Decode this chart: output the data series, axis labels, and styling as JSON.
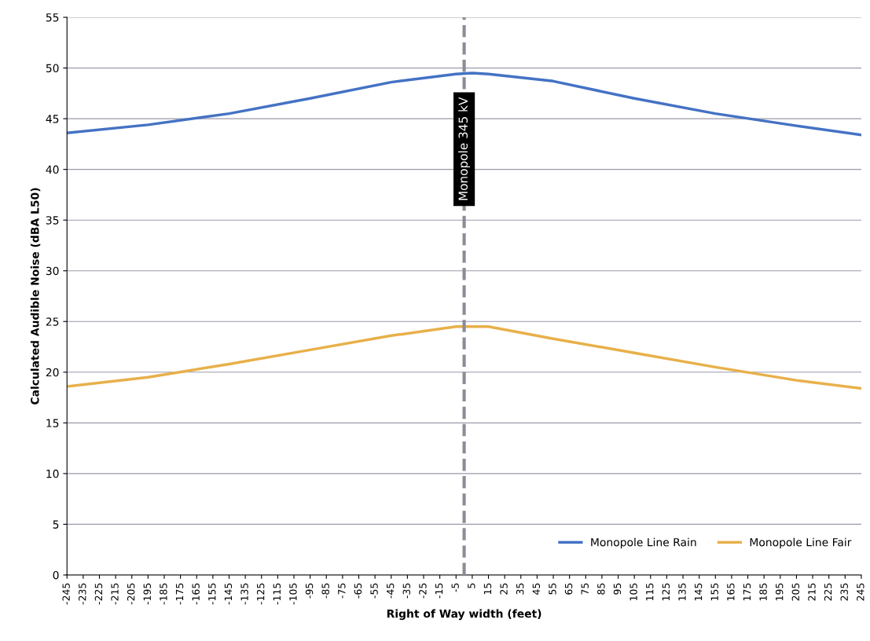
{
  "chart_data": {
    "type": "line",
    "xlabel": "Right of Way width (feet)",
    "ylabel": "Calculated Audible Noise (dBA L50)",
    "xlim": [
      -245,
      245
    ],
    "xticks": [
      -245,
      -235,
      -225,
      -215,
      -205,
      -195,
      -185,
      -175,
      -165,
      -155,
      -145,
      -135,
      -125,
      -115,
      -105,
      -95,
      -85,
      -75,
      -65,
      -55,
      -45,
      -35,
      -25,
      -15,
      -5,
      5,
      15,
      25,
      35,
      45,
      55,
      65,
      75,
      85,
      95,
      105,
      115,
      125,
      135,
      145,
      155,
      165,
      175,
      185,
      195,
      205,
      215,
      225,
      235,
      245
    ],
    "ylim": [
      0,
      55
    ],
    "yticks": [
      0,
      5,
      10,
      15,
      20,
      25,
      30,
      35,
      40,
      45,
      50,
      55
    ],
    "grid": "y",
    "legend": "bottom right",
    "line_style": "solid",
    "x": [
      -245,
      -195,
      -145,
      -95,
      -45,
      -5,
      5,
      15,
      55,
      105,
      155,
      205,
      245
    ],
    "series": [
      {
        "name": "Monopole Line Rain",
        "color": "#4472c4",
        "values": [
          43.6,
          44.4,
          45.5,
          47.0,
          48.6,
          49.4,
          49.5,
          49.4,
          48.7,
          47.0,
          45.5,
          44.3,
          43.4
        ]
      },
      {
        "name": "Monopole Line Fair",
        "color": "#e8b04a",
        "values": [
          18.6,
          19.5,
          20.8,
          22.2,
          23.6,
          24.5,
          24.5,
          24.5,
          23.3,
          21.9,
          20.5,
          19.2,
          18.4
        ]
      }
    ],
    "ref_lines": [
      {
        "axis": "x",
        "value": 0,
        "label": "Monopole 345 kV",
        "color": "#8c8c99",
        "line_style": "dashed"
      }
    ]
  }
}
